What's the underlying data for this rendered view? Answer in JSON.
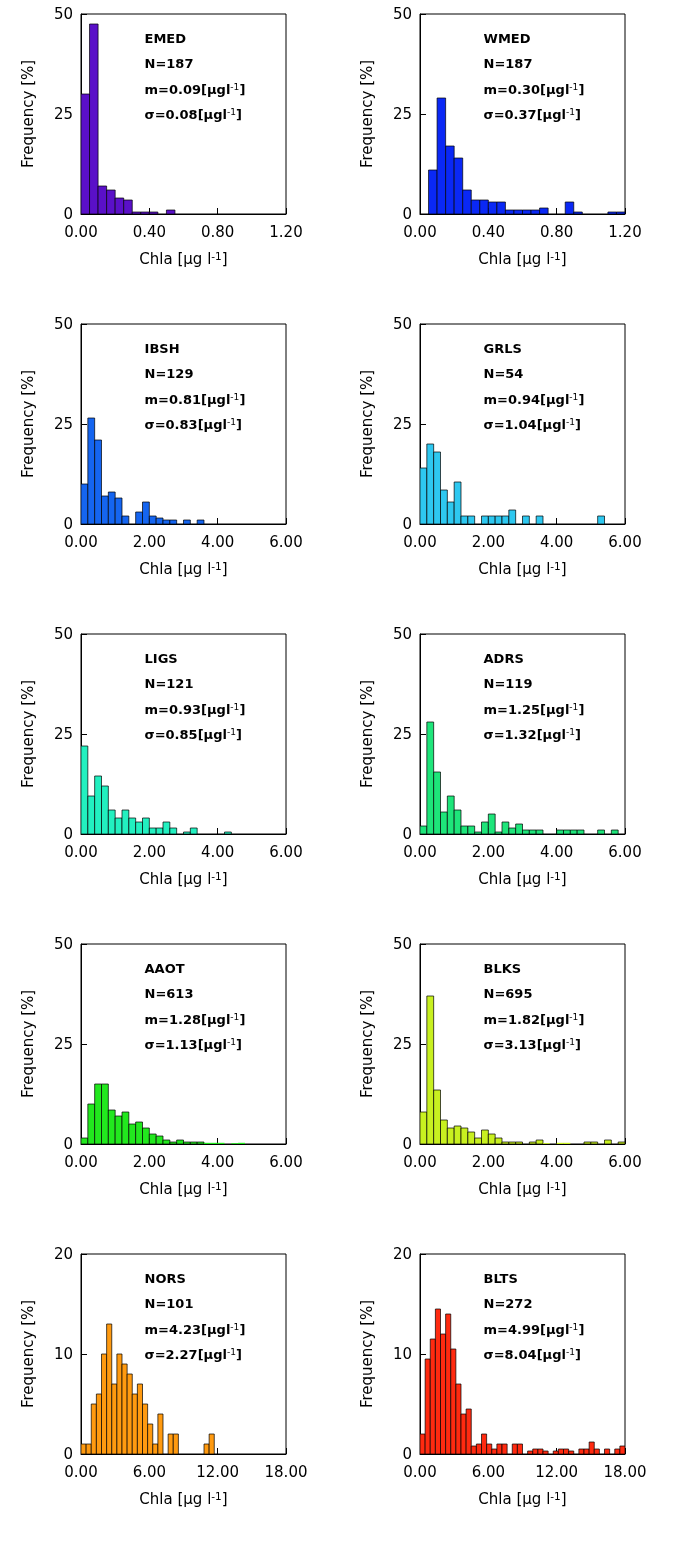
{
  "chart_data": [
    {
      "type": "histogram",
      "color": "#5a10c8",
      "annotations": [
        "EMED",
        "N=187",
        "m=0.09[μgl$^{-1}$]",
        "σ=0.08[μgl$^{-1}$]"
      ],
      "xlabel": "Chla [μg l$^{-1}$]",
      "ylabel": "Frequency [%]",
      "grid": false,
      "bins": [
        0,
        0.05,
        0.1,
        0.15,
        0.2,
        0.25,
        0.3,
        0.35,
        0.4,
        0.45,
        0.5,
        0.55,
        0.6,
        0.65,
        0.7,
        0.75,
        0.8,
        0.85,
        0.9,
        0.95,
        1,
        1.05,
        1.1,
        1.15,
        1.2
      ],
      "values": [
        30,
        47.5,
        7,
        6,
        4,
        3.5,
        0.5,
        0.5,
        0.5,
        0,
        1,
        0,
        0,
        0,
        0,
        0,
        0,
        0,
        0,
        0,
        0,
        0,
        0,
        0
      ],
      "xlim": [
        0,
        1.2
      ],
      "xticks": [
        {
          "value": 0,
          "label": "0.00"
        },
        {
          "value": 0.4,
          "label": "0.40"
        },
        {
          "value": 0.8,
          "label": "0.80"
        },
        {
          "value": 1.2,
          "label": "1.20"
        }
      ],
      "ylim": [
        0,
        50
      ],
      "yticks": [
        0,
        25,
        50
      ]
    },
    {
      "type": "histogram",
      "color": "#0a28f5",
      "annotations": [
        "WMED",
        "N=187",
        "m=0.30[μgl$^{-1}$]",
        "σ=0.37[μgl$^{-1}$]"
      ],
      "xlabel": "Chla [μg l$^{-1}$]",
      "ylabel": "Frequency [%]",
      "grid": false,
      "bins": [
        0,
        0.05,
        0.1,
        0.15,
        0.2,
        0.25,
        0.3,
        0.35,
        0.4,
        0.45,
        0.5,
        0.55,
        0.6,
        0.65,
        0.7,
        0.75,
        0.8,
        0.85,
        0.9,
        0.95,
        1,
        1.05,
        1.1,
        1.15,
        1.2
      ],
      "values": [
        0,
        11,
        29,
        17,
        14,
        6,
        3.5,
        3.5,
        3,
        3,
        1,
        1,
        1,
        1,
        1.5,
        0,
        0,
        3,
        0.5,
        0,
        0,
        0,
        0.5,
        0.5
      ],
      "xlim": [
        0,
        1.2
      ],
      "xticks": [
        {
          "value": 0,
          "label": "0.00"
        },
        {
          "value": 0.4,
          "label": "0.40"
        },
        {
          "value": 0.8,
          "label": "0.80"
        },
        {
          "value": 1.2,
          "label": "1.20"
        }
      ],
      "ylim": [
        0,
        50
      ],
      "yticks": [
        0,
        25,
        50
      ]
    },
    {
      "type": "histogram",
      "color": "#1565f0",
      "annotations": [
        "IBSH",
        "N=129",
        "m=0.81[μgl$^{-1}$]",
        "σ=0.83[μgl$^{-1}$]"
      ],
      "xlabel": "Chla [μg l$^{-1}$]",
      "ylabel": "Frequency [%]",
      "grid": false,
      "bins": [
        0,
        0.2,
        0.4,
        0.6,
        0.8,
        1,
        1.2,
        1.4,
        1.6,
        1.8,
        2,
        2.2,
        2.4,
        2.6,
        2.8,
        3,
        3.2,
        3.4,
        3.6,
        3.8,
        4,
        4.2,
        4.4,
        4.6,
        4.8,
        5,
        5.2,
        5.4,
        5.6,
        5.8,
        6
      ],
      "values": [
        10,
        26.5,
        21,
        7,
        8,
        6.5,
        2,
        0,
        3,
        5.5,
        2,
        1.5,
        1,
        1,
        0,
        1,
        0,
        1,
        0,
        0,
        0,
        0,
        0,
        0,
        0,
        0,
        0,
        0,
        0,
        0
      ],
      "xlim": [
        0,
        6
      ],
      "xticks": [
        {
          "value": 0,
          "label": "0.00"
        },
        {
          "value": 2,
          "label": "2.00"
        },
        {
          "value": 4,
          "label": "4.00"
        },
        {
          "value": 6,
          "label": "6.00"
        }
      ],
      "ylim": [
        0,
        50
      ],
      "yticks": [
        0,
        25,
        50
      ]
    },
    {
      "type": "histogram",
      "color": "#2ec8f0",
      "annotations": [
        "GRLS",
        "N=54",
        "m=0.94[μgl$^{-1}$]",
        "σ=1.04[μgl$^{-1}$]"
      ],
      "xlabel": "Chla [μg l$^{-1}$]",
      "ylabel": "Frequency [%]",
      "grid": false,
      "bins": [
        0,
        0.2,
        0.4,
        0.6,
        0.8,
        1,
        1.2,
        1.4,
        1.6,
        1.8,
        2,
        2.2,
        2.4,
        2.6,
        2.8,
        3,
        3.2,
        3.4,
        3.6,
        3.8,
        4,
        4.2,
        4.4,
        4.6,
        4.8,
        5,
        5.2,
        5.4,
        5.6,
        5.8,
        6
      ],
      "values": [
        14,
        20,
        18,
        8.5,
        5.5,
        10.5,
        2,
        2,
        0,
        2,
        2,
        2,
        2,
        3.5,
        0,
        2,
        0,
        2,
        0,
        0,
        0,
        0,
        0,
        0,
        0,
        0,
        2,
        0,
        0,
        0
      ],
      "xlim": [
        0,
        6
      ],
      "xticks": [
        {
          "value": 0,
          "label": "0.00"
        },
        {
          "value": 2,
          "label": "2.00"
        },
        {
          "value": 4,
          "label": "4.00"
        },
        {
          "value": 6,
          "label": "6.00"
        }
      ],
      "ylim": [
        0,
        50
      ],
      "yticks": [
        0,
        25,
        50
      ]
    },
    {
      "type": "histogram",
      "color": "#22f0c0",
      "annotations": [
        "LIGS",
        "N=121",
        "m=0.93[μgl$^{-1}$]",
        "σ=0.85[μgl$^{-1}$]"
      ],
      "xlabel": "Chla [μg l$^{-1}$]",
      "ylabel": "Frequency [%]",
      "grid": false,
      "bins": [
        0,
        0.2,
        0.4,
        0.6,
        0.8,
        1,
        1.2,
        1.4,
        1.6,
        1.8,
        2,
        2.2,
        2.4,
        2.6,
        2.8,
        3,
        3.2,
        3.4,
        3.6,
        3.8,
        4,
        4.2,
        4.4,
        4.6,
        4.8,
        5,
        5.2,
        5.4,
        5.6,
        5.8,
        6
      ],
      "values": [
        22,
        9.5,
        14.5,
        12,
        6,
        4,
        6,
        4,
        3,
        4,
        1.5,
        1.5,
        3,
        1.5,
        0,
        0.5,
        1.5,
        0,
        0,
        0,
        0,
        0.5,
        0,
        0,
        0,
        0,
        0,
        0,
        0,
        0
      ],
      "xlim": [
        0,
        6
      ],
      "xticks": [
        {
          "value": 0,
          "label": "0.00"
        },
        {
          "value": 2,
          "label": "2.00"
        },
        {
          "value": 4,
          "label": "4.00"
        },
        {
          "value": 6,
          "label": "6.00"
        }
      ],
      "ylim": [
        0,
        50
      ],
      "yticks": [
        0,
        25,
        50
      ]
    },
    {
      "type": "histogram",
      "color": "#1ee57a",
      "annotations": [
        "ADRS",
        "N=119",
        "m=1.25[μgl$^{-1}$]",
        "σ=1.32[μgl$^{-1}$]"
      ],
      "xlabel": "Chla [μg l$^{-1}$]",
      "ylabel": "Frequency [%]",
      "grid": false,
      "bins": [
        0,
        0.2,
        0.4,
        0.6,
        0.8,
        1,
        1.2,
        1.4,
        1.6,
        1.8,
        2,
        2.2,
        2.4,
        2.6,
        2.8,
        3,
        3.2,
        3.4,
        3.6,
        3.8,
        4,
        4.2,
        4.4,
        4.6,
        4.8,
        5,
        5.2,
        5.4,
        5.6,
        5.8,
        6
      ],
      "values": [
        2,
        28,
        15.5,
        5.5,
        9.5,
        6,
        2,
        2,
        0.5,
        3,
        5,
        0.5,
        3,
        1.5,
        2.5,
        1,
        1,
        1,
        0,
        0,
        1,
        1,
        1,
        1,
        0,
        0,
        1,
        0,
        1,
        0
      ],
      "xlim": [
        0,
        6
      ],
      "xticks": [
        {
          "value": 0,
          "label": "0.00"
        },
        {
          "value": 2,
          "label": "2.00"
        },
        {
          "value": 4,
          "label": "4.00"
        },
        {
          "value": 6,
          "label": "6.00"
        }
      ],
      "ylim": [
        0,
        50
      ],
      "yticks": [
        0,
        25,
        50
      ]
    },
    {
      "type": "histogram",
      "color": "#22e81e",
      "annotations": [
        "AAOT",
        "N=613",
        "m=1.28[μgl$^{-1}$]",
        "σ=1.13[μgl$^{-1}$]"
      ],
      "xlabel": "Chla [μg l$^{-1}$]",
      "ylabel": "Frequency [%]",
      "grid": false,
      "bins": [
        0,
        0.2,
        0.4,
        0.6,
        0.8,
        1,
        1.2,
        1.4,
        1.6,
        1.8,
        2,
        2.2,
        2.4,
        2.6,
        2.8,
        3,
        3.2,
        3.4,
        3.6,
        3.8,
        4,
        4.2,
        4.4,
        4.6,
        4.8,
        5,
        5.2,
        5.4,
        5.6,
        5.8,
        6
      ],
      "values": [
        1.5,
        10,
        15,
        15,
        8.5,
        7,
        8,
        5,
        5.5,
        4,
        2.5,
        2,
        1,
        0.5,
        1,
        0.5,
        0.5,
        0.5,
        0.3,
        0.3,
        0.3,
        0,
        0.2,
        0.3,
        0,
        0,
        0,
        0,
        0,
        0
      ],
      "xlim": [
        0,
        6
      ],
      "xticks": [
        {
          "value": 0,
          "label": "0.00"
        },
        {
          "value": 2,
          "label": "2.00"
        },
        {
          "value": 4,
          "label": "4.00"
        },
        {
          "value": 6,
          "label": "6.00"
        }
      ],
      "ylim": [
        0,
        50
      ],
      "yticks": [
        0,
        25,
        50
      ]
    },
    {
      "type": "histogram",
      "color": "#c8f020",
      "annotations": [
        "BLKS",
        "N=695",
        "m=1.82[μgl$^{-1}$]",
        "σ=3.13[μgl$^{-1}$]"
      ],
      "xlabel": "Chla [μg l$^{-1}$]",
      "ylabel": "Frequency [%]",
      "grid": false,
      "bins": [
        0,
        0.2,
        0.4,
        0.6,
        0.8,
        1,
        1.2,
        1.4,
        1.6,
        1.8,
        2,
        2.2,
        2.4,
        2.6,
        2.8,
        3,
        3.2,
        3.4,
        3.6,
        3.8,
        4,
        4.2,
        4.4,
        4.6,
        4.8,
        5,
        5.2,
        5.4,
        5.6,
        5.8,
        6
      ],
      "values": [
        8,
        37,
        13.5,
        6,
        4,
        4.5,
        4,
        3,
        1.5,
        3.5,
        2.5,
        1.5,
        0.5,
        0.5,
        0.5,
        0,
        0.5,
        1,
        0.2,
        0,
        0.3,
        0.3,
        0,
        0,
        0.5,
        0.5,
        0,
        1,
        0,
        0.5
      ],
      "xlim": [
        0,
        6
      ],
      "xticks": [
        {
          "value": 0,
          "label": "0.00"
        },
        {
          "value": 2,
          "label": "2.00"
        },
        {
          "value": 4,
          "label": "4.00"
        },
        {
          "value": 6,
          "label": "6.00"
        }
      ],
      "ylim": [
        0,
        50
      ],
      "yticks": [
        0,
        25,
        50
      ]
    },
    {
      "type": "histogram",
      "color": "#ff9a10",
      "annotations": [
        "NORS",
        "N=101",
        "m=4.23[μgl$^{-1}$]",
        "σ=2.27[μgl$^{-1}$]"
      ],
      "xlabel": "Chla [μg l$^{-1}$]",
      "ylabel": "Frequency [%]",
      "grid": false,
      "bins": [
        0,
        0.45,
        0.9,
        1.35,
        1.8,
        2.25,
        2.7,
        3.15,
        3.6,
        4.05,
        4.5,
        4.95,
        5.4,
        5.85,
        6.3,
        6.75,
        7.2,
        7.65,
        8.1,
        8.55,
        9,
        9.45,
        9.9,
        10.35,
        10.8,
        11.25,
        11.7,
        12.15,
        12.6,
        13.05,
        13.5,
        13.95,
        14.4,
        14.85,
        15.3,
        15.75,
        16.2,
        16.65,
        17.1,
        17.55,
        18
      ],
      "values": [
        1,
        1,
        5,
        6,
        10,
        13,
        7,
        10,
        9,
        8,
        6,
        7,
        5,
        3,
        1,
        4,
        0,
        2,
        2,
        0,
        0,
        0,
        0,
        0,
        1,
        2,
        0,
        0,
        0,
        0,
        0,
        0,
        0,
        0,
        0,
        0,
        0,
        0,
        0,
        0
      ],
      "xlim": [
        0,
        18
      ],
      "xticks": [
        {
          "value": 0,
          "label": "0.00"
        },
        {
          "value": 6,
          "label": "6.00"
        },
        {
          "value": 12,
          "label": "12.00"
        },
        {
          "value": 18,
          "label": "18.00"
        }
      ],
      "ylim": [
        0,
        20
      ],
      "yticks": [
        0,
        10,
        20
      ]
    },
    {
      "type": "histogram",
      "color": "#ff2a10",
      "annotations": [
        "BLTS",
        "N=272",
        "m=4.99[μgl$^{-1}$]",
        "σ=8.04[μgl$^{-1}$]"
      ],
      "xlabel": "Chla [μg l$^{-1}$]",
      "ylabel": "Frequency [%]",
      "grid": false,
      "bins": [
        0,
        0.45,
        0.9,
        1.35,
        1.8,
        2.25,
        2.7,
        3.15,
        3.6,
        4.05,
        4.5,
        4.95,
        5.4,
        5.85,
        6.3,
        6.75,
        7.2,
        7.65,
        8.1,
        8.55,
        9,
        9.45,
        9.9,
        10.35,
        10.8,
        11.25,
        11.7,
        12.15,
        12.6,
        13.05,
        13.5,
        13.95,
        14.4,
        14.85,
        15.3,
        15.75,
        16.2,
        16.65,
        17.1,
        17.55,
        18
      ],
      "values": [
        2,
        9.5,
        11.5,
        14.5,
        12,
        14,
        10.5,
        7,
        4,
        4.5,
        0.8,
        1,
        2,
        1,
        0.5,
        1,
        1,
        0,
        1,
        1,
        0,
        0.3,
        0.5,
        0.5,
        0.3,
        0,
        0.3,
        0.5,
        0.5,
        0.3,
        0,
        0.5,
        0.5,
        1.2,
        0.5,
        0,
        0.5,
        0,
        0.5,
        0.8
      ],
      "xlim": [
        0,
        18
      ],
      "xticks": [
        {
          "value": 0,
          "label": "0.00"
        },
        {
          "value": 6,
          "label": "6.00"
        },
        {
          "value": 12,
          "label": "12.00"
        },
        {
          "value": 18,
          "label": "18.00"
        }
      ],
      "ylim": [
        0,
        20
      ],
      "yticks": [
        0,
        10,
        20
      ]
    }
  ]
}
